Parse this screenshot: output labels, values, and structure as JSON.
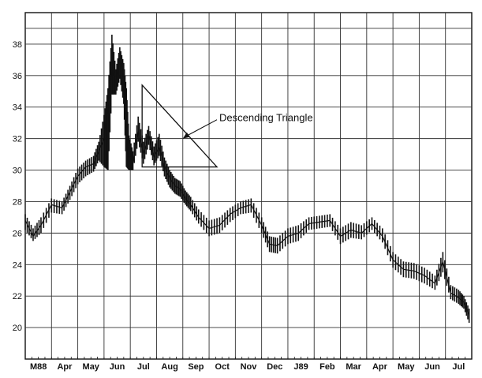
{
  "chart_data": {
    "type": "line",
    "style": "high-low price bars",
    "title": "",
    "xlabel": "",
    "ylabel": "",
    "ylim": [
      18,
      40
    ],
    "grid": true,
    "y_ticks": [
      20,
      22,
      24,
      26,
      28,
      30,
      32,
      34,
      36,
      38
    ],
    "y_tick_labels": [
      "20",
      "22",
      "24",
      "26",
      "28",
      "30",
      "32",
      "34",
      "36",
      "38"
    ],
    "x_tick_labels": [
      "M88",
      "Apr",
      "May",
      "Jun",
      "Jul",
      "Aug",
      "Sep",
      "Oct",
      "Nov",
      "Dec",
      "J89",
      "Feb",
      "Mar",
      "Apr",
      "May",
      "Jun",
      "Jul"
    ],
    "months_span": [
      0,
      17
    ],
    "series": [
      {
        "x": [
          0,
          0.3,
          0.6,
          1,
          1.4,
          1.7,
          2,
          2.3,
          2.6,
          2.8,
          3.0,
          3.15,
          3.3,
          3.45,
          3.6,
          3.75,
          3.85,
          3.95,
          4.1,
          4.3,
          4.5,
          4.7,
          4.9,
          5.1,
          5.3,
          5.5,
          5.7,
          5.9,
          6.1,
          6.3,
          6.6,
          7,
          7.4,
          7.8,
          8.2,
          8.6,
          9,
          9.3,
          9.6,
          10,
          10.4,
          10.8,
          11.2,
          11.6,
          12,
          12.4,
          12.8,
          13.2,
          13.6,
          14,
          14.4,
          14.8,
          15.2,
          15.6,
          15.9,
          16.2,
          16.5,
          16.7,
          16.9
        ],
        "y": [
          26.8,
          25.8,
          26.5,
          27.8,
          27.6,
          28.6,
          29.6,
          30.2,
          30.4,
          31.2,
          32.0,
          34.0,
          36.5,
          35.5,
          37.2,
          35.8,
          32.8,
          31.0,
          30.5,
          32.5,
          31.0,
          32.2,
          30.8,
          31.5,
          30.2,
          29.5,
          29.0,
          28.8,
          28.2,
          27.8,
          27.0,
          26.3,
          26.5,
          27.2,
          27.6,
          27.8,
          26.5,
          25.3,
          25.2,
          25.8,
          26.0,
          26.6,
          26.7,
          26.8,
          25.8,
          26.2,
          26.0,
          26.6,
          25.8,
          24.3,
          23.7,
          23.6,
          23.3,
          22.8,
          24.2,
          22.2,
          21.9,
          21.6,
          20.8
        ],
        "ranges": [
          [
            26.2,
            27.2
          ],
          [
            25.5,
            26.3
          ],
          [
            26.0,
            27.0
          ],
          [
            27.3,
            28.2
          ],
          [
            27.2,
            28.0
          ],
          [
            28.1,
            29.0
          ],
          [
            29.1,
            30.1
          ],
          [
            29.6,
            30.6
          ],
          [
            29.9,
            30.9
          ],
          [
            30.6,
            31.8
          ],
          [
            30.2,
            33.5
          ],
          [
            30.0,
            35.2
          ],
          [
            34.8,
            38.6
          ],
          [
            34.8,
            36.4
          ],
          [
            35.8,
            37.8
          ],
          [
            34.2,
            36.8
          ],
          [
            30.2,
            35.2
          ],
          [
            30.0,
            32.2
          ],
          [
            30.0,
            31.2
          ],
          [
            31.8,
            33.4
          ],
          [
            30.4,
            31.8
          ],
          [
            31.6,
            32.8
          ],
          [
            30.3,
            31.5
          ],
          [
            30.9,
            32.3
          ],
          [
            29.6,
            30.8
          ],
          [
            28.9,
            30.0
          ],
          [
            28.5,
            29.5
          ],
          [
            28.3,
            29.3
          ],
          [
            27.8,
            28.7
          ],
          [
            27.4,
            28.3
          ],
          [
            26.6,
            27.5
          ],
          [
            25.8,
            26.8
          ],
          [
            26.0,
            27.0
          ],
          [
            26.7,
            27.6
          ],
          [
            27.2,
            28.0
          ],
          [
            27.3,
            28.2
          ],
          [
            26.0,
            27.0
          ],
          [
            24.8,
            25.8
          ],
          [
            24.7,
            25.7
          ],
          [
            25.3,
            26.3
          ],
          [
            25.5,
            26.5
          ],
          [
            26.2,
            27.0
          ],
          [
            26.3,
            27.1
          ],
          [
            26.4,
            27.2
          ],
          [
            25.3,
            26.3
          ],
          [
            25.7,
            26.7
          ],
          [
            25.6,
            26.5
          ],
          [
            26.2,
            27.0
          ],
          [
            25.4,
            26.3
          ],
          [
            23.8,
            24.8
          ],
          [
            23.2,
            24.2
          ],
          [
            23.1,
            24.1
          ],
          [
            22.8,
            23.8
          ],
          [
            22.4,
            23.3
          ],
          [
            23.5,
            24.8
          ],
          [
            21.8,
            22.7
          ],
          [
            21.5,
            22.4
          ],
          [
            21.2,
            22.0
          ],
          [
            20.3,
            21.2
          ]
        ]
      }
    ],
    "annotations": [
      {
        "text": "Descending Triangle",
        "shape": "triangle",
        "vertices": [
          [
            4.45,
            35.4
          ],
          [
            4.45,
            30.2
          ],
          [
            7.3,
            30.2
          ]
        ],
        "arrow_target": [
          6.0,
          32.0
        ]
      }
    ]
  }
}
